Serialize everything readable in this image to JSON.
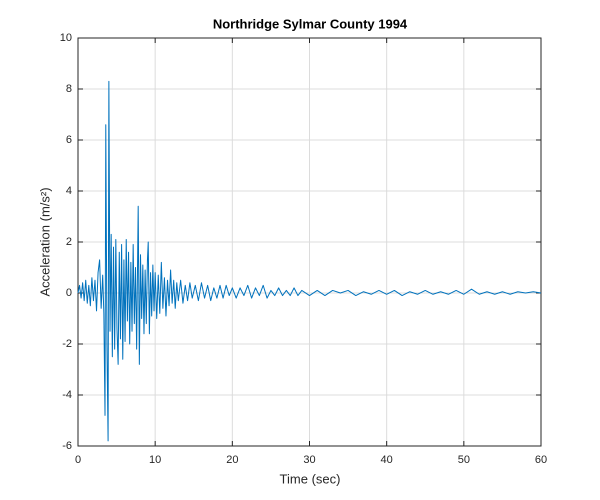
{
  "chart_data": {
    "type": "line",
    "title": "Northridge Sylmar County 1994",
    "x_label": "Time (sec)",
    "y_label": "Acceleration (m/s²)",
    "x": [
      0,
      0.2,
      0.4,
      0.6,
      0.8,
      1.0,
      1.2,
      1.4,
      1.6,
      1.8,
      2.0,
      2.2,
      2.4,
      2.6,
      2.8,
      3.0,
      3.2,
      3.35,
      3.5,
      3.6,
      3.75,
      3.9,
      4.0,
      4.15,
      4.3,
      4.45,
      4.6,
      4.75,
      4.9,
      5.05,
      5.2,
      5.35,
      5.5,
      5.65,
      5.8,
      5.95,
      6.1,
      6.25,
      6.4,
      6.55,
      6.7,
      6.85,
      7.0,
      7.15,
      7.3,
      7.45,
      7.6,
      7.8,
      7.95,
      8.1,
      8.25,
      8.4,
      8.55,
      8.7,
      8.85,
      9.0,
      9.1,
      9.25,
      9.4,
      9.55,
      9.7,
      9.85,
      10.0,
      10.2,
      10.4,
      10.6,
      10.8,
      11.0,
      11.2,
      11.4,
      11.6,
      11.8,
      12.0,
      12.2,
      12.4,
      12.6,
      12.8,
      13.0,
      13.3,
      13.6,
      13.9,
      14.2,
      14.5,
      14.8,
      15.2,
      15.6,
      16.0,
      16.4,
      16.8,
      17.2,
      17.6,
      18.0,
      18.4,
      18.8,
      19.2,
      19.6,
      20.0,
      20.5,
      21.0,
      21.5,
      22.0,
      22.5,
      23.0,
      23.5,
      24.0,
      24.5,
      25.0,
      25.5,
      26.0,
      26.5,
      27.0,
      27.5,
      28.0,
      28.5,
      29.0,
      30,
      31,
      32,
      33,
      34,
      35,
      36,
      37,
      38,
      39,
      40,
      41,
      42,
      43,
      44,
      45,
      46,
      47,
      48,
      49,
      50,
      51,
      52,
      53,
      54,
      55,
      56,
      57,
      58,
      59,
      60
    ],
    "values": [
      0,
      0.3,
      -0.2,
      0.4,
      -0.3,
      0.5,
      -0.4,
      0.3,
      -0.5,
      0.6,
      -0.3,
      0.5,
      -0.7,
      0.8,
      1.3,
      -0.6,
      0.7,
      -0.8,
      -4.8,
      6.6,
      -2.0,
      -5.8,
      8.3,
      -1.5,
      2.3,
      -2.5,
      1.8,
      -2.2,
      2.1,
      -1.4,
      -2.8,
      1.6,
      -1.8,
      1.9,
      -2.6,
      1.3,
      -1.9,
      2.1,
      -1.1,
      1.6,
      -2.0,
      1.2,
      -1.5,
      1.9,
      -1.2,
      1.0,
      -2.2,
      3.4,
      -2.8,
      1.5,
      -1.0,
      1.1,
      -1.6,
      0.9,
      -1.2,
      1.3,
      2.0,
      -1.6,
      0.8,
      -0.9,
      1.1,
      -0.7,
      0.8,
      -1.0,
      0.7,
      -0.8,
      1.2,
      -0.6,
      0.6,
      -0.9,
      0.5,
      -0.5,
      0.9,
      -0.4,
      0.5,
      -0.6,
      0.4,
      -0.3,
      0.5,
      -0.4,
      0.3,
      -0.3,
      0.4,
      -0.2,
      0.3,
      -0.3,
      0.4,
      -0.2,
      0.3,
      -0.3,
      0.2,
      -0.2,
      0.3,
      -0.2,
      0.3,
      -0.1,
      0.2,
      -0.2,
      0.2,
      -0.1,
      0.3,
      -0.2,
      0.2,
      -0.1,
      0.3,
      -0.2,
      0.1,
      -0.1,
      0.2,
      -0.1,
      0.1,
      -0.1,
      0.2,
      -0.1,
      0.1,
      -0.1,
      0.1,
      -0.1,
      0.1,
      0,
      0.1,
      -0.1,
      0.05,
      -0.05,
      0.1,
      -0.05,
      0.1,
      -0.1,
      0.05,
      -0.05,
      0.1,
      -0.05,
      0.05,
      -0.05,
      0.1,
      -0.05,
      0.15,
      -0.05,
      0.05,
      -0.05,
      0.05,
      -0.05,
      0.05,
      0,
      0.05,
      0
    ],
    "color": "#0072bd",
    "xlim": [
      0,
      60
    ],
    "xticks": [
      0,
      10,
      20,
      30,
      40,
      50,
      60
    ],
    "ylim": [
      -6,
      10
    ],
    "yticks": [
      -6,
      -4,
      -2,
      0,
      2,
      4,
      6,
      8,
      10
    ],
    "grid": true
  }
}
